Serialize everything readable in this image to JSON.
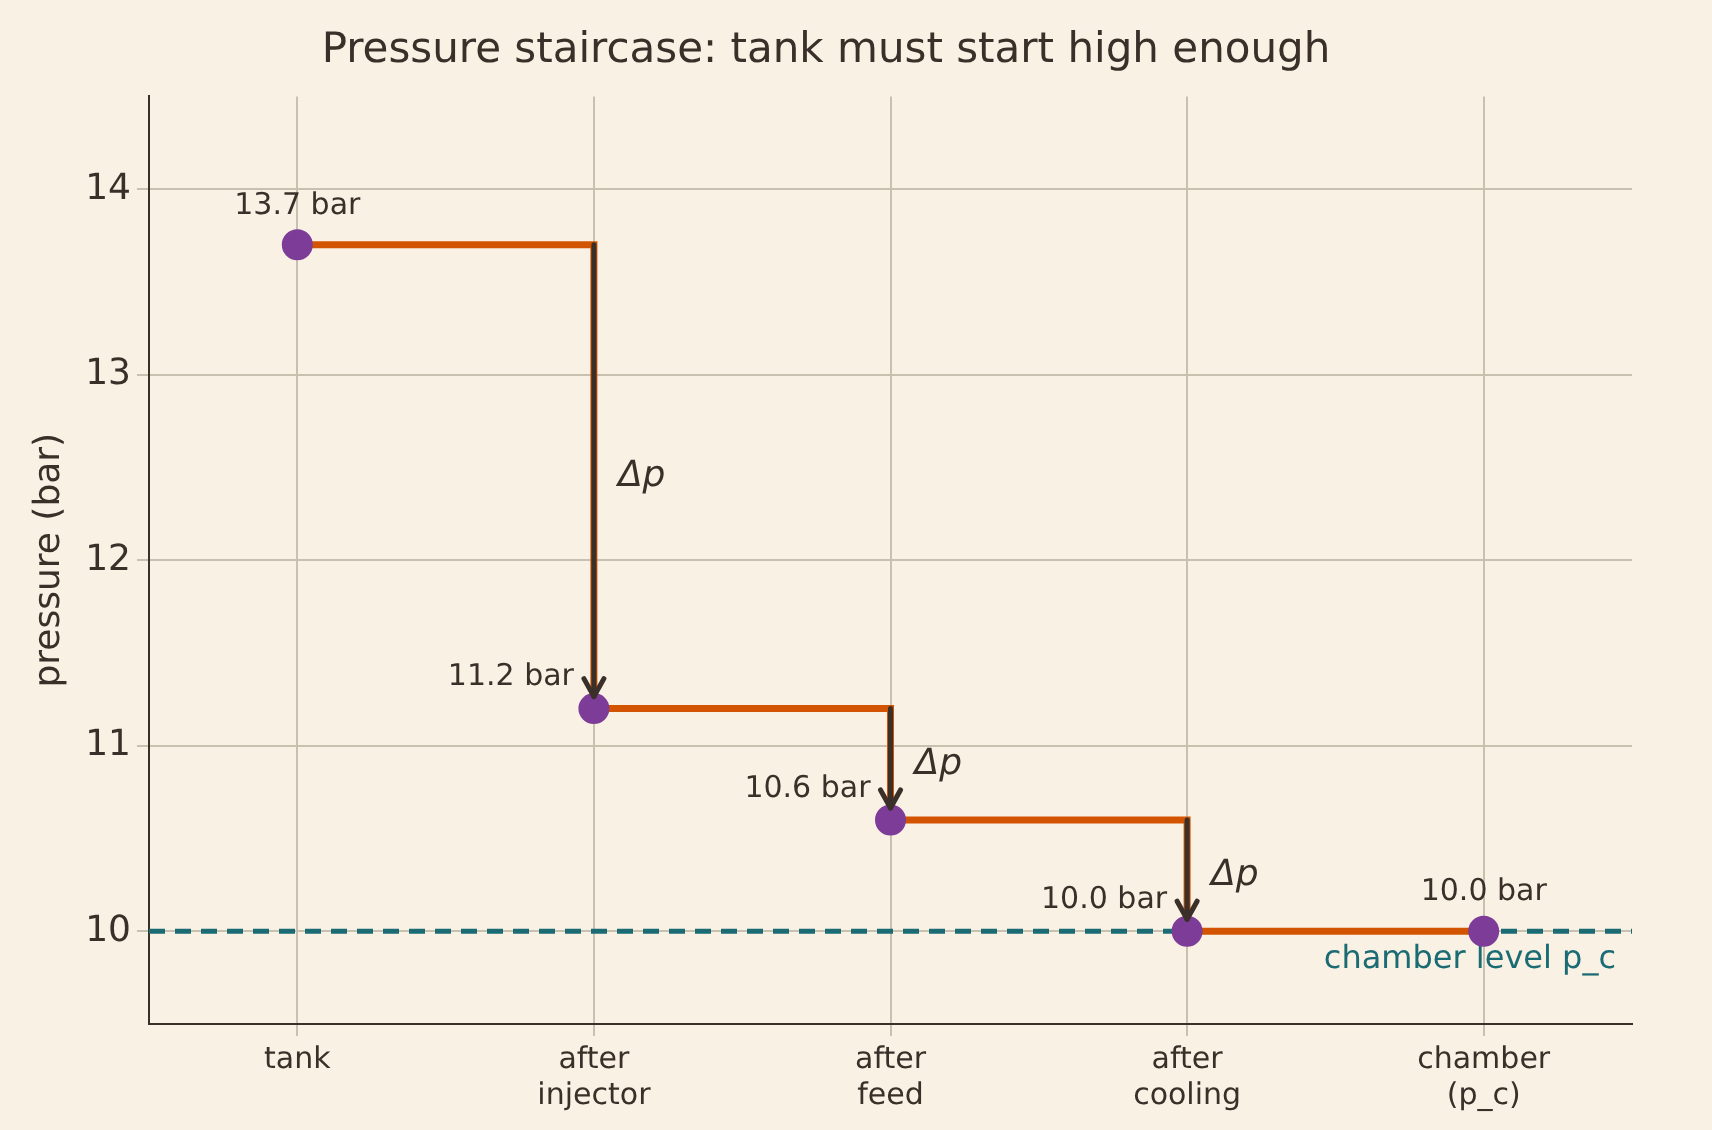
{
  "chart_data": {
    "type": "step",
    "title": "Pressure staircase: tank must start high enough",
    "ylabel": "pressure (bar)",
    "categories": [
      "tank",
      "after injector",
      "after feed",
      "after cooling",
      "chamber (p_c)"
    ],
    "series": [
      {
        "color": "#d35400",
        "values": [
          13.7,
          11.2,
          10.6,
          10.0,
          10.0
        ],
        "value_labels": [
          "13.7 bar",
          "11.2 bar",
          "10.6 bar",
          "10.0 bar",
          "10.0 bar"
        ]
      }
    ],
    "marker": "circle",
    "ylim": [
      9.5,
      14.5
    ],
    "yticks": [
      10,
      11,
      12,
      13,
      14
    ],
    "grid": true,
    "legend": false,
    "ref_lines": [
      {
        "axis": "y",
        "value": 10.0,
        "label": "chamber level p_c",
        "color": "#1a6b73",
        "line_style": "dashed"
      }
    ],
    "annotations": [
      "Δp",
      "Δp",
      "Δp"
    ]
  }
}
